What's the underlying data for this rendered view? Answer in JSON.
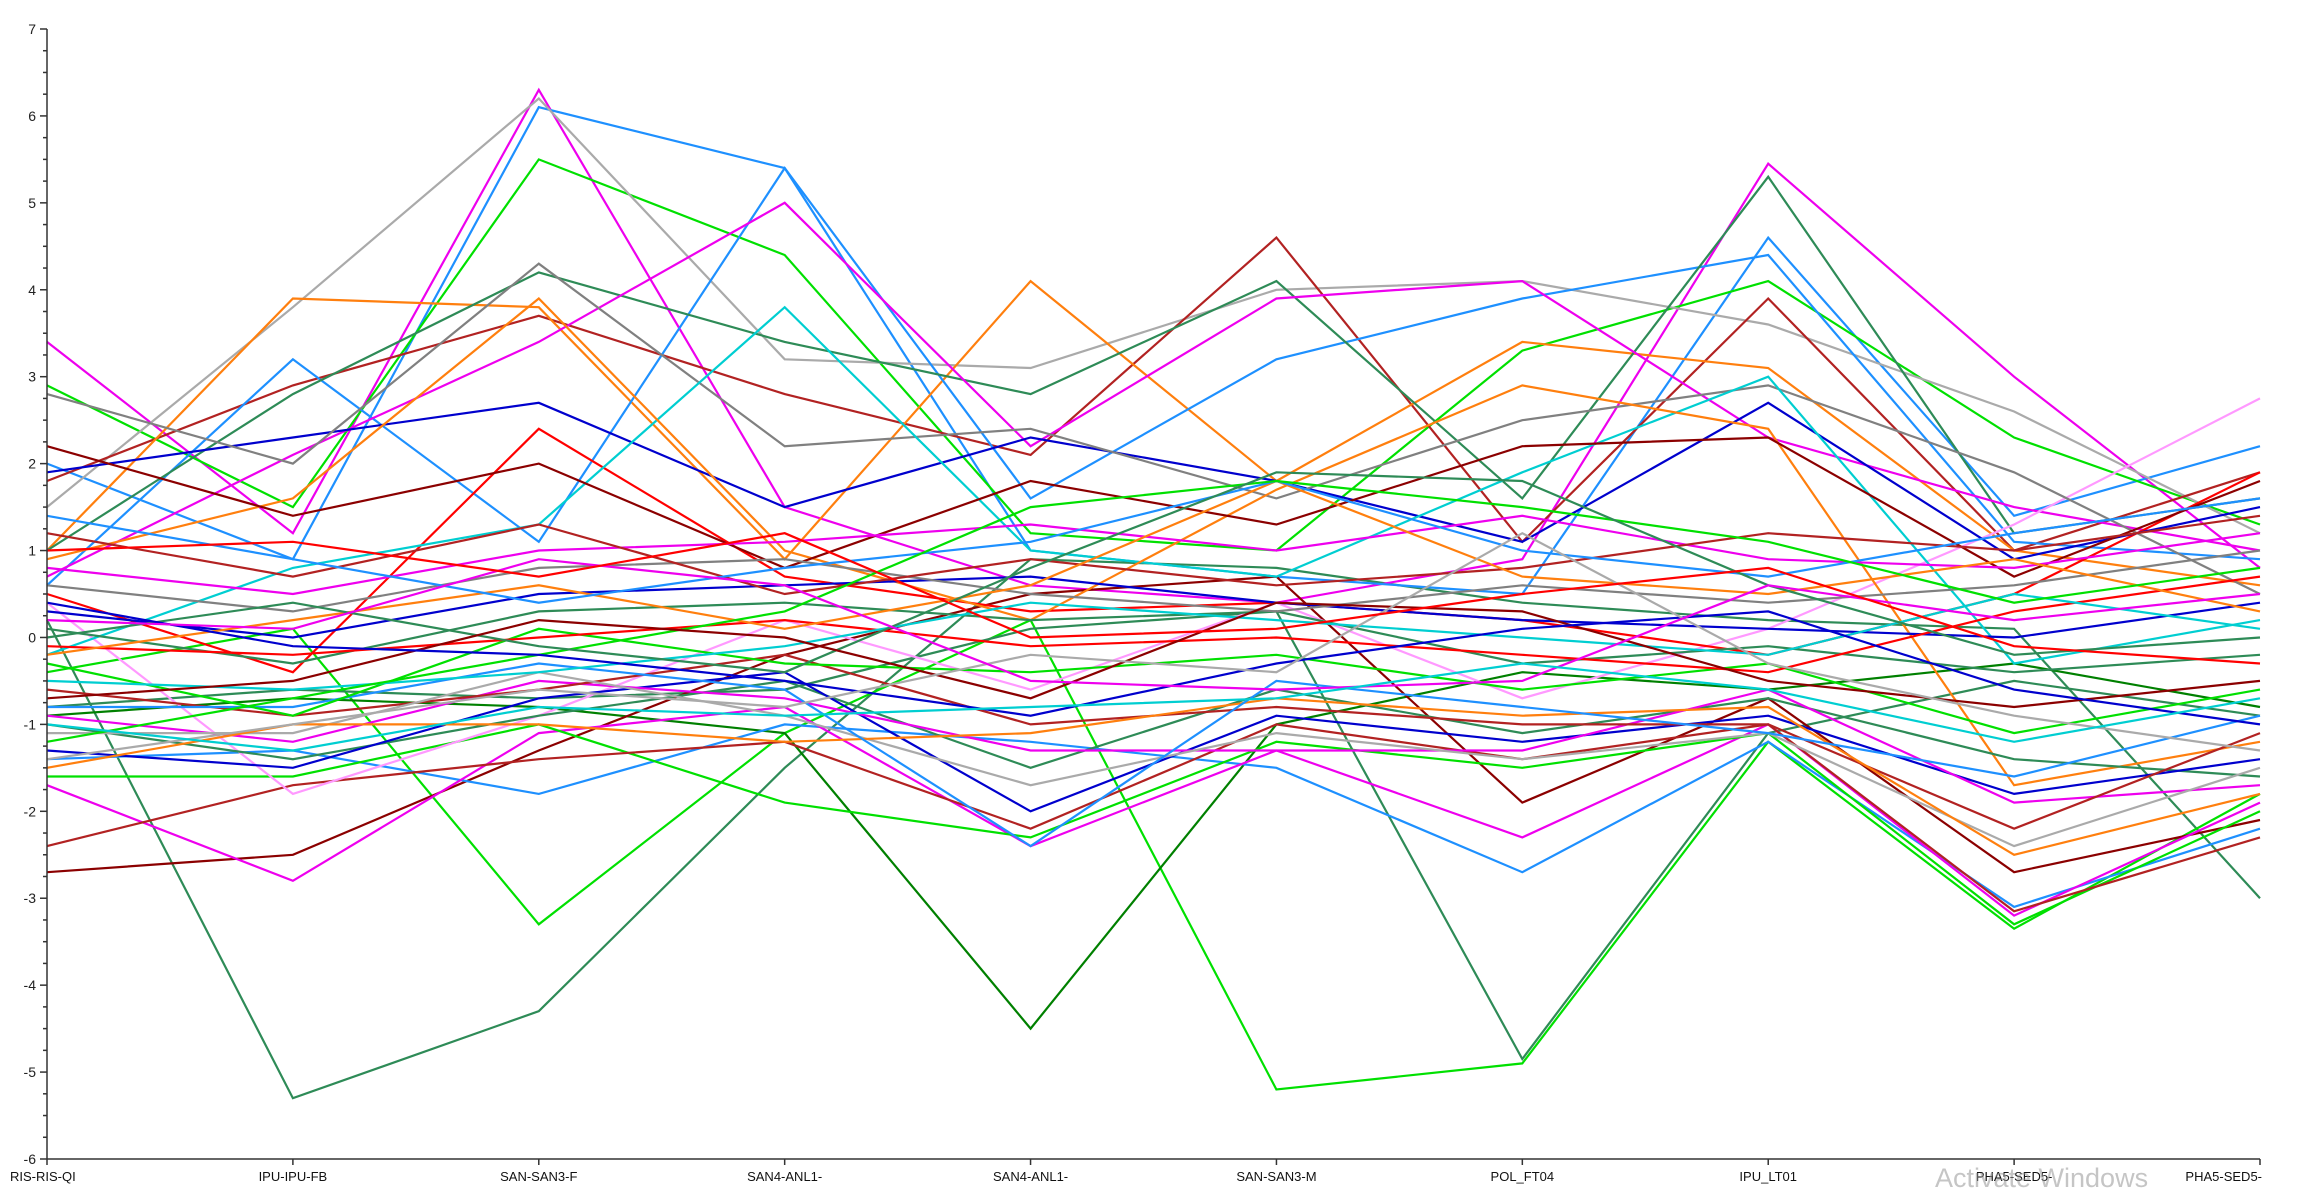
{
  "chart_data": {
    "type": "line",
    "title": "",
    "xlabel": "",
    "ylabel": "",
    "ylim": [
      -6,
      7
    ],
    "y_ticks": [
      "7",
      "6",
      "5",
      "4",
      "3",
      "2",
      "1",
      "0",
      "-1",
      "-2",
      "-3",
      "-4",
      "-5",
      "-6"
    ],
    "categories": [
      "RIS-RIS-QI",
      "IPU-IPU-FB",
      "SAN-SAN3-F",
      "SAN4-ANL1-",
      "SAN4-ANL1-",
      "SAN-SAN3-M",
      "POL_FT04",
      "IPU_LT01",
      "PHA5-SED5-",
      "PHA5-SED5-"
    ],
    "grid": false,
    "legend": "none",
    "series": [
      {
        "color": "#2e8b57",
        "values": [
          0.2,
          -5.3,
          -4.3,
          -1.5,
          0.9,
          0.8,
          0.4,
          0.2,
          0.1,
          -3.0
        ]
      },
      {
        "color": "#00e000",
        "values": [
          -0.4,
          0.1,
          -3.3,
          -1.1,
          0.2,
          -5.2,
          -4.9,
          -1.2,
          -3.35,
          -1.8
        ]
      },
      {
        "color": "#008000",
        "values": [
          -0.9,
          -0.7,
          -0.8,
          -1.1,
          -4.5,
          -1.0,
          -0.4,
          -0.6,
          -0.3,
          -0.8
        ]
      },
      {
        "color": "#2e8b57",
        "values": [
          -0.8,
          -0.6,
          -0.7,
          -0.6,
          0.1,
          0.3,
          -4.85,
          -1.1,
          -0.5,
          -0.9
        ]
      },
      {
        "color": "#ee00ee",
        "values": [
          3.4,
          1.2,
          6.3,
          1.5,
          0.6,
          0.4,
          0.9,
          5.45,
          3.0,
          0.8
        ]
      },
      {
        "color": "#1e90ff",
        "values": [
          2.0,
          0.9,
          6.1,
          5.4,
          1.0,
          0.7,
          0.5,
          4.6,
          1.4,
          2.2
        ]
      },
      {
        "color": "#00e000",
        "values": [
          2.9,
          1.5,
          5.5,
          4.4,
          1.2,
          1.0,
          3.3,
          4.1,
          2.3,
          1.3
        ]
      },
      {
        "color": "#aaaaaa",
        "values": [
          1.5,
          3.8,
          6.2,
          3.2,
          3.1,
          4.0,
          4.1,
          3.6,
          2.6,
          1.2
        ]
      },
      {
        "color": "#b22222",
        "values": [
          1.8,
          2.9,
          3.7,
          2.8,
          2.1,
          4.6,
          1.1,
          3.9,
          1.0,
          1.9
        ]
      },
      {
        "color": "#ff7f0e",
        "values": [
          1.0,
          3.9,
          3.8,
          0.9,
          4.1,
          1.8,
          3.4,
          3.1,
          1.0,
          0.6
        ]
      },
      {
        "color": "#1e90ff",
        "values": [
          0.6,
          3.2,
          1.1,
          5.4,
          1.6,
          3.2,
          3.9,
          4.4,
          1.1,
          0.9
        ]
      },
      {
        "color": "#2e8b57",
        "values": [
          1.0,
          2.8,
          4.2,
          3.4,
          2.8,
          4.1,
          1.6,
          5.3,
          1.2,
          1.6
        ]
      },
      {
        "color": "#ee00ee",
        "values": [
          0.7,
          2.1,
          3.4,
          5.0,
          2.2,
          3.9,
          4.1,
          2.3,
          1.5,
          1.0
        ]
      },
      {
        "color": "#8b0000",
        "values": [
          -2.7,
          -2.5,
          -1.3,
          -0.2,
          0.5,
          0.7,
          -1.9,
          -0.7,
          -2.7,
          -2.1
        ]
      },
      {
        "color": "#1e90ff",
        "values": [
          -1.4,
          -1.3,
          -1.8,
          -1.0,
          -1.2,
          -1.5,
          -2.7,
          -1.2,
          -3.1,
          -2.2
        ]
      },
      {
        "color": "#ee00ee",
        "values": [
          -1.7,
          -2.8,
          -1.1,
          -0.8,
          -2.4,
          -1.3,
          -2.3,
          -1.0,
          -3.2,
          -1.9
        ]
      },
      {
        "color": "#00e000",
        "values": [
          -1.6,
          -1.6,
          -1.0,
          -1.9,
          -2.3,
          -1.2,
          -1.5,
          -1.1,
          -3.3,
          -2.0
        ]
      },
      {
        "color": "#b22222",
        "values": [
          -2.4,
          -1.7,
          -1.4,
          -1.2,
          -2.2,
          -1.0,
          -1.4,
          -1.0,
          -3.15,
          -2.3
        ]
      },
      {
        "color": "#ff99ff",
        "values": [
          0.4,
          -1.8,
          -0.9,
          0.2,
          -0.6,
          0.4,
          -0.7,
          0.1,
          1.3,
          2.75
        ]
      },
      {
        "color": "#ff0000",
        "values": [
          0.5,
          -0.4,
          2.4,
          0.7,
          0.3,
          0.4,
          0.2,
          -0.2,
          0.5,
          1.9
        ]
      },
      {
        "color": "#0000cd",
        "values": [
          1.9,
          2.3,
          2.7,
          1.5,
          2.3,
          1.8,
          1.1,
          2.7,
          0.9,
          1.5
        ]
      },
      {
        "color": "#808080",
        "values": [
          2.8,
          2.0,
          4.3,
          2.2,
          2.4,
          1.6,
          2.5,
          2.9,
          1.9,
          0.5
        ]
      },
      {
        "color": "#00ced1",
        "values": [
          -0.2,
          0.8,
          1.3,
          3.8,
          1.0,
          0.7,
          1.9,
          3.0,
          -0.3,
          0.2
        ]
      },
      {
        "color": "#ff7f0e",
        "values": [
          0.9,
          1.6,
          3.9,
          1.0,
          0.2,
          1.7,
          2.9,
          2.4,
          -1.7,
          -1.2
        ]
      },
      {
        "color": "#8b0000",
        "values": [
          2.2,
          1.4,
          2.0,
          0.8,
          1.8,
          1.3,
          2.2,
          2.3,
          0.7,
          1.8
        ]
      },
      {
        "color": "#2e8b57",
        "values": [
          -1.0,
          -1.4,
          -0.9,
          -0.5,
          -1.5,
          -0.6,
          -1.1,
          -0.7,
          -1.4,
          -1.6
        ]
      },
      {
        "color": "#0000cd",
        "values": [
          -1.3,
          -1.5,
          -0.7,
          -0.4,
          -2.0,
          -0.9,
          -1.2,
          -0.9,
          -1.8,
          -1.4
        ]
      },
      {
        "color": "#ee00ee",
        "values": [
          -0.9,
          -1.2,
          -0.5,
          -0.7,
          -1.3,
          -1.3,
          -1.3,
          -0.6,
          -1.9,
          -1.7
        ]
      },
      {
        "color": "#b22222",
        "values": [
          -0.6,
          -0.9,
          -0.6,
          -0.2,
          -1.0,
          -0.8,
          -1.0,
          -1.0,
          -2.2,
          -1.1
        ]
      },
      {
        "color": "#aaaaaa",
        "values": [
          -1.1,
          -1.1,
          -0.4,
          -0.9,
          -1.7,
          -1.1,
          -1.4,
          -1.1,
          -2.4,
          -1.5
        ]
      },
      {
        "color": "#ff7f0e",
        "values": [
          -1.5,
          -1.0,
          -1.0,
          -1.2,
          -1.1,
          -0.7,
          -0.9,
          -0.8,
          -2.5,
          -1.8
        ]
      },
      {
        "color": "#1e90ff",
        "values": [
          -0.8,
          -0.8,
          -0.3,
          -0.6,
          -2.4,
          -0.5,
          -0.8,
          -1.1,
          -1.6,
          -0.9
        ]
      },
      {
        "color": "#00e000",
        "values": [
          -0.3,
          -0.9,
          0.1,
          -0.3,
          -0.4,
          -0.2,
          -0.6,
          -0.3,
          -1.1,
          -0.6
        ]
      },
      {
        "color": "#2e8b57",
        "values": [
          0.1,
          -0.3,
          0.3,
          0.4,
          0.2,
          0.3,
          -0.3,
          -0.1,
          -0.4,
          -0.2
        ]
      },
      {
        "color": "#0000cd",
        "values": [
          0.3,
          0.0,
          0.5,
          0.6,
          0.7,
          0.4,
          0.2,
          0.1,
          0.0,
          0.4
        ]
      },
      {
        "color": "#ff0000",
        "values": [
          -0.1,
          -0.2,
          0.0,
          0.2,
          -0.1,
          0.0,
          -0.2,
          -0.4,
          0.3,
          0.7
        ]
      },
      {
        "color": "#808080",
        "values": [
          0.6,
          0.3,
          0.8,
          0.9,
          0.5,
          0.3,
          0.6,
          0.4,
          0.6,
          1.0
        ]
      },
      {
        "color": "#ee00ee",
        "values": [
          0.8,
          0.5,
          1.0,
          1.1,
          1.3,
          1.0,
          1.4,
          0.9,
          0.8,
          1.2
        ]
      },
      {
        "color": "#00ced1",
        "values": [
          -0.5,
          -0.6,
          -0.4,
          -0.1,
          0.4,
          0.2,
          0.0,
          -0.2,
          0.5,
          0.1
        ]
      },
      {
        "color": "#b22222",
        "values": [
          1.2,
          0.7,
          1.3,
          0.5,
          0.9,
          0.6,
          0.8,
          1.2,
          1.0,
          1.4
        ]
      },
      {
        "color": "#ff7f0e",
        "values": [
          -0.2,
          0.2,
          0.6,
          0.1,
          0.6,
          1.8,
          0.7,
          0.5,
          0.9,
          0.3
        ]
      },
      {
        "color": "#1e90ff",
        "values": [
          1.4,
          0.9,
          0.4,
          0.8,
          1.1,
          1.8,
          1.0,
          0.7,
          1.2,
          1.6
        ]
      },
      {
        "color": "#00e000",
        "values": [
          -1.2,
          -0.7,
          -0.2,
          0.3,
          1.5,
          1.8,
          1.5,
          1.1,
          0.4,
          0.8
        ]
      },
      {
        "color": "#2e8b57",
        "values": [
          0.0,
          0.4,
          -0.1,
          -0.4,
          0.8,
          1.9,
          1.8,
          0.6,
          -0.2,
          0.0
        ]
      },
      {
        "color": "#8b0000",
        "values": [
          -0.7,
          -0.5,
          0.2,
          0.0,
          -0.7,
          0.4,
          0.3,
          -0.5,
          -0.8,
          -0.5
        ]
      },
      {
        "color": "#0000cd",
        "values": [
          0.4,
          -0.1,
          -0.2,
          -0.5,
          -0.9,
          -0.3,
          0.1,
          0.3,
          -0.6,
          -1.0
        ]
      },
      {
        "color": "#aaaaaa",
        "values": [
          -1.4,
          -1.0,
          -0.6,
          -0.8,
          -0.2,
          -0.4,
          1.2,
          -0.3,
          -0.9,
          -1.3
        ]
      },
      {
        "color": "#ee00ee",
        "values": [
          0.2,
          0.1,
          0.9,
          0.6,
          -0.5,
          -0.6,
          -0.5,
          0.6,
          0.2,
          0.5
        ]
      },
      {
        "color": "#ff0000",
        "values": [
          1.0,
          1.1,
          0.7,
          1.2,
          0.0,
          0.1,
          0.5,
          0.8,
          -0.1,
          -0.3
        ]
      },
      {
        "color": "#00ced1",
        "values": [
          -1.0,
          -1.3,
          -0.8,
          -0.9,
          -0.8,
          -0.7,
          -0.3,
          -0.6,
          -1.2,
          -0.7
        ]
      }
    ]
  },
  "watermark_text": "Activate Windows"
}
